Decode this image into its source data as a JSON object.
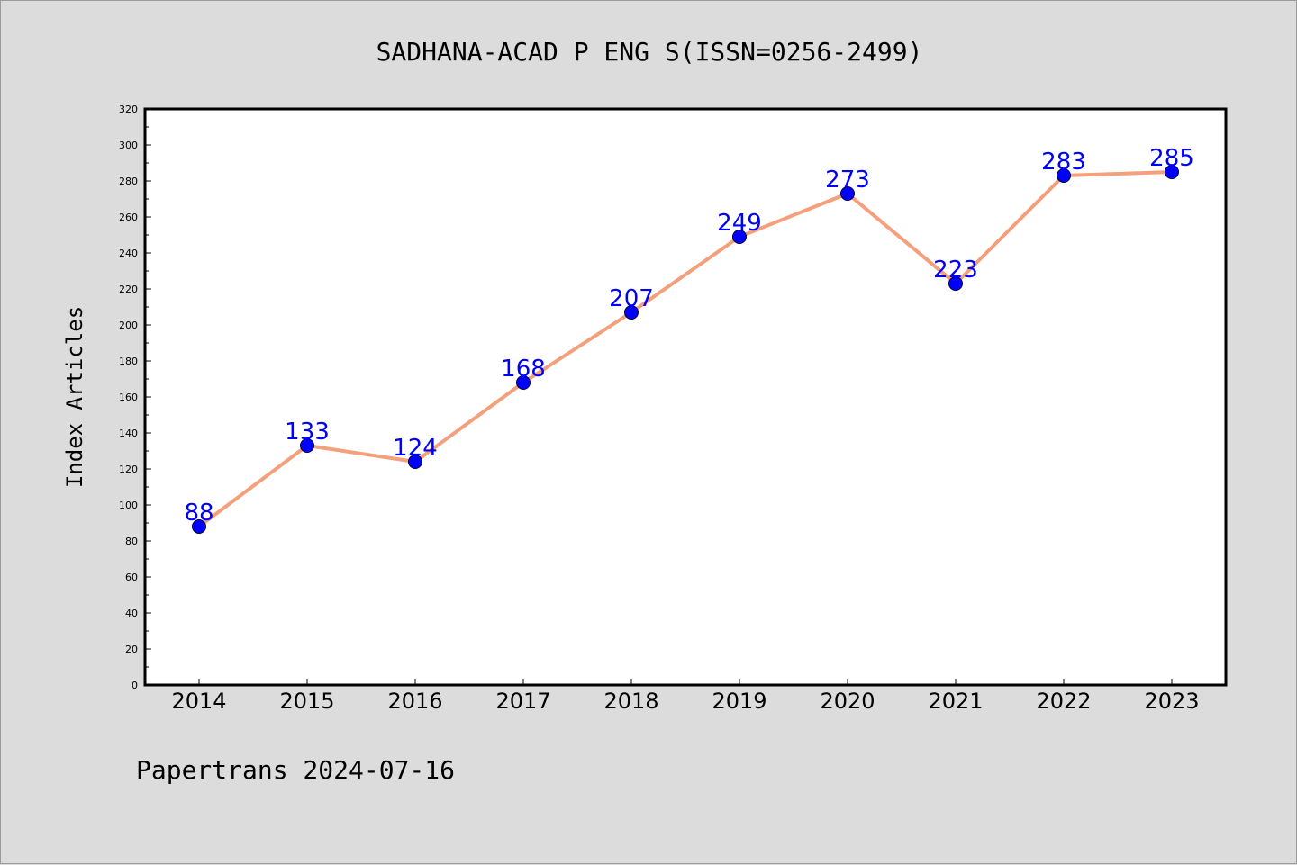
{
  "chart_data": {
    "type": "line",
    "title": "SADHANA-ACAD P ENG S(ISSN=0256-2499)",
    "xlabel": "",
    "ylabel": "Index Articles",
    "categories": [
      "2014",
      "2015",
      "2016",
      "2017",
      "2018",
      "2019",
      "2020",
      "2021",
      "2022",
      "2023"
    ],
    "series": [
      {
        "values": [
          88,
          133,
          124,
          168,
          207,
          249,
          273,
          223,
          283,
          285
        ],
        "line_color": "#f4a07c",
        "marker_color": "#0000ff",
        "label_color": "#0000ff"
      }
    ],
    "ylim": [
      0,
      320
    ],
    "yticks": [
      0,
      20,
      40,
      60,
      80,
      100,
      120,
      140,
      160,
      180,
      200,
      220,
      240,
      260,
      280,
      300,
      320
    ],
    "grid": false,
    "legend": "none",
    "plot_background": "#ffffff",
    "figure_background": "#dcdcdc"
  },
  "footer": {
    "text": "Papertrans 2024-07-16"
  }
}
